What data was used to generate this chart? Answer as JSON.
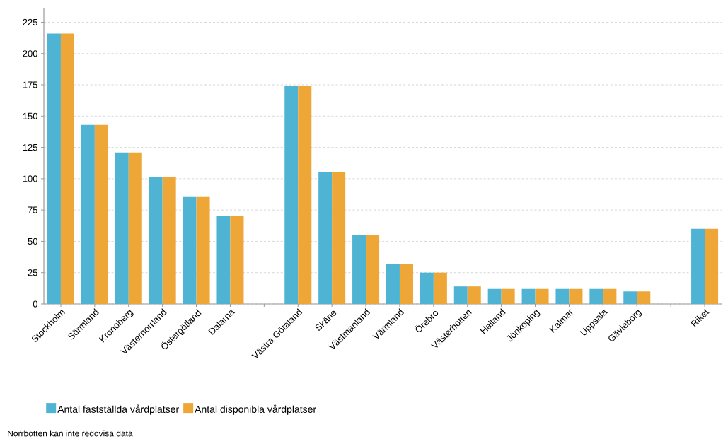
{
  "chart_data": {
    "type": "bar",
    "categories": [
      "Stockholm",
      "Sörmland",
      "Kronoberg",
      "Västernorrland",
      "Östergötland",
      "Dalarna",
      null,
      "Västra Götaland",
      "Skåne",
      "Västmanland",
      "Värmland",
      "Örebro",
      "Västerbotten",
      "Halland",
      "Jönköping",
      "Kalmar",
      "Uppsala",
      "Gävleborg",
      null,
      "Riket"
    ],
    "series": [
      {
        "name": "Antal fastställda vårdplatser",
        "color": "#4fb3d4",
        "values": [
          216,
          143,
          121,
          101,
          86,
          70,
          null,
          174,
          105,
          55,
          32,
          25,
          14,
          12,
          12,
          12,
          12,
          10,
          null,
          60
        ]
      },
      {
        "name": "Antal disponibla vårdplatser",
        "color": "#eea637",
        "values": [
          216,
          143,
          121,
          101,
          86,
          70,
          null,
          174,
          105,
          55,
          32,
          25,
          14,
          12,
          12,
          12,
          12,
          10,
          null,
          60
        ]
      }
    ],
    "ylim": [
      0,
      236
    ],
    "yticks": [
      0,
      25,
      50,
      75,
      100,
      125,
      150,
      175,
      200,
      225
    ],
    "grid": "y",
    "legend": "bottom left",
    "annotations": [
      "Norrbotten kan inte redovisa data"
    ]
  }
}
